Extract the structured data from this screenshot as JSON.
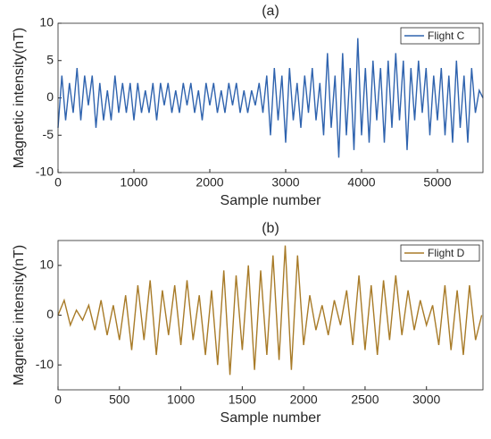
{
  "chart_data": [
    {
      "type": "line",
      "title": "(a)",
      "xlabel": "Sample number",
      "ylabel": "Magnetic intensity(nT)",
      "xlim": [
        0,
        5600
      ],
      "xticks": [
        0,
        1000,
        2000,
        3000,
        4000,
        5000
      ],
      "ylim": [
        -10,
        10
      ],
      "yticks": [
        -10,
        -5,
        0,
        5,
        10
      ],
      "legend": "northeast",
      "x": [
        0,
        50,
        100,
        150,
        200,
        250,
        300,
        350,
        400,
        450,
        500,
        550,
        600,
        650,
        700,
        750,
        800,
        850,
        900,
        950,
        1000,
        1050,
        1100,
        1150,
        1200,
        1250,
        1300,
        1350,
        1400,
        1450,
        1500,
        1550,
        1600,
        1650,
        1700,
        1750,
        1800,
        1850,
        1900,
        1950,
        2000,
        2050,
        2100,
        2150,
        2200,
        2250,
        2300,
        2350,
        2400,
        2450,
        2500,
        2550,
        2600,
        2650,
        2700,
        2750,
        2800,
        2850,
        2900,
        2950,
        3000,
        3050,
        3100,
        3150,
        3200,
        3250,
        3300,
        3350,
        3400,
        3450,
        3500,
        3550,
        3600,
        3650,
        3700,
        3750,
        3800,
        3850,
        3900,
        3950,
        4000,
        4050,
        4100,
        4150,
        4200,
        4250,
        4300,
        4350,
        4400,
        4450,
        4500,
        4550,
        4600,
        4650,
        4700,
        4750,
        4800,
        4850,
        4900,
        4950,
        5000,
        5050,
        5100,
        5150,
        5200,
        5250,
        5300,
        5350,
        5400,
        5450,
        5500,
        5550,
        5600
      ],
      "series": [
        {
          "name": "Flight C",
          "color": "#2f63ae",
          "values": [
            -4,
            3,
            -3,
            2,
            -2,
            4,
            -3,
            3,
            -1,
            3,
            -4,
            2,
            -3,
            1,
            -3,
            3,
            -2,
            2,
            -2,
            2,
            -3,
            2,
            -2,
            1,
            -2,
            2,
            -3,
            2,
            -1,
            2,
            -2,
            1,
            -2,
            2,
            -1,
            2,
            -2,
            1,
            -3,
            2,
            -1,
            2,
            -2,
            1,
            -2,
            2,
            -1,
            2,
            -2,
            1,
            -2,
            1,
            -1,
            2,
            -2,
            3,
            -5,
            4,
            -3,
            3,
            -6,
            4,
            -3,
            2,
            -4,
            3,
            -2,
            4,
            -3,
            2,
            -5,
            6,
            -4,
            3,
            -8,
            6,
            -5,
            4,
            -7,
            8,
            -5,
            4,
            -6,
            5,
            -3,
            4,
            -6,
            5,
            -4,
            6,
            -3,
            5,
            -7,
            4,
            -3,
            5,
            -2,
            4,
            -5,
            3,
            -3,
            4,
            -5,
            3,
            -6,
            5,
            -4,
            3,
            -6,
            4,
            -2,
            1,
            0
          ]
        }
      ]
    },
    {
      "type": "line",
      "title": "(b)",
      "xlabel": "Sample number",
      "ylabel": "Magnetic intensity(nT)",
      "xlim": [
        0,
        3460
      ],
      "xticks": [
        0,
        500,
        1000,
        1500,
        2000,
        2500,
        3000
      ],
      "ylim": [
        -15,
        15
      ],
      "yticks": [
        -10,
        0,
        10
      ],
      "legend": "northeast",
      "x": [
        0,
        50,
        100,
        150,
        200,
        250,
        300,
        350,
        400,
        450,
        500,
        550,
        600,
        650,
        700,
        750,
        800,
        850,
        900,
        950,
        1000,
        1050,
        1100,
        1150,
        1200,
        1250,
        1300,
        1350,
        1400,
        1450,
        1500,
        1550,
        1600,
        1650,
        1700,
        1750,
        1800,
        1850,
        1900,
        1950,
        2000,
        2050,
        2100,
        2150,
        2200,
        2250,
        2300,
        2350,
        2400,
        2450,
        2500,
        2550,
        2600,
        2650,
        2700,
        2750,
        2800,
        2850,
        2900,
        2950,
        3000,
        3050,
        3100,
        3150,
        3200,
        3250,
        3300,
        3350,
        3400,
        3450
      ],
      "series": [
        {
          "name": "Flight D",
          "color": "#a87b28",
          "values": [
            0,
            3,
            -2,
            1,
            -1,
            2,
            -3,
            3,
            -4,
            2,
            -5,
            4,
            -7,
            6,
            -5,
            7,
            -8,
            5,
            -4,
            6,
            -6,
            7,
            -5,
            4,
            -8,
            5,
            -10,
            9,
            -12,
            8,
            -7,
            10,
            -11,
            9,
            -8,
            12,
            -9,
            14,
            -11,
            12,
            -6,
            4,
            -3,
            2,
            -4,
            3,
            -2,
            5,
            -6,
            8,
            -7,
            6,
            -8,
            7,
            -5,
            8,
            -4,
            5,
            -3,
            3,
            -2,
            2,
            -6,
            6,
            -7,
            5,
            -8,
            6,
            -5,
            0
          ]
        }
      ]
    }
  ]
}
